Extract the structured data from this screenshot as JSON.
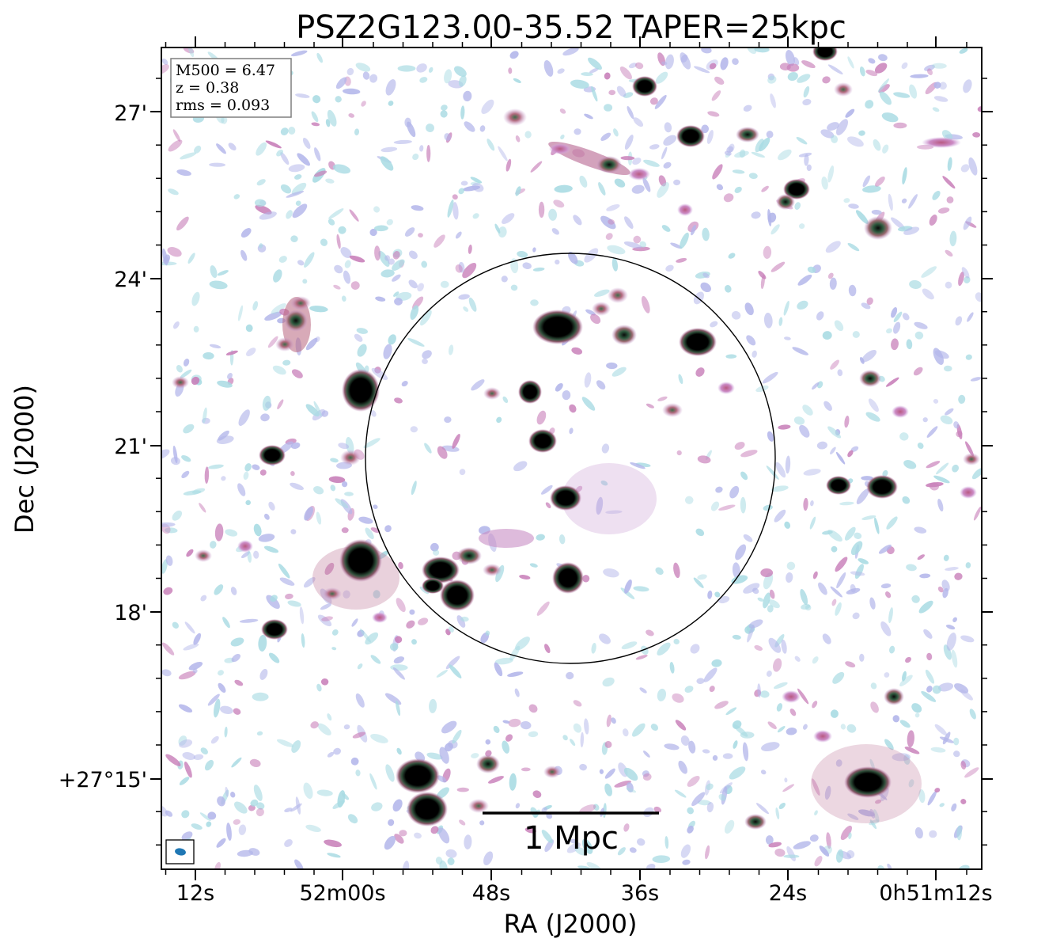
{
  "figure": {
    "title": "PSZ2G123.00-35.52 TAPER=25kpc",
    "xlabel": "RA (J2000)",
    "ylabel": "Dec (J2000)",
    "ra_ticks": [
      "12s",
      "52m00s",
      "48s",
      "36s",
      "24s",
      "0h51m12s"
    ],
    "dec_ticks": [
      "27'",
      "24'",
      "21'",
      "18'",
      "+27°15'"
    ],
    "info_box": {
      "line1": "M500 = 6.47",
      "line2": "z = 0.38",
      "line3": "rms = 0.093"
    },
    "scale_bar_label": "1 Mpc",
    "colors": {
      "faint_cyan": "#a9dbe3",
      "faint_lavender": "#b3b6ea",
      "pink": "#c87fb9",
      "rose": "#b25a78",
      "green": "#3f6b4a",
      "core": "#000000",
      "beam": "#1f77b4"
    }
  }
}
